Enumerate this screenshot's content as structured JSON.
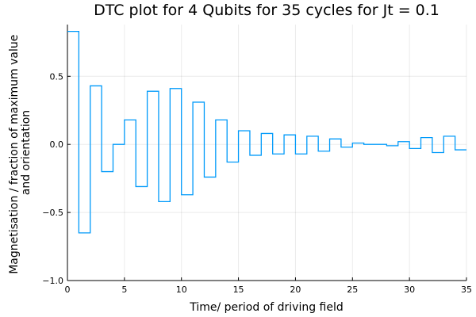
{
  "chart_data": {
    "type": "line",
    "step": true,
    "title": "DTC plot for 4 Qubits for 35 cycles for Jt = 0.1",
    "xlabel": "Time/ period of driving field",
    "ylabel": [
      "Magnetisation / fraction of maximum value",
      "and orientation"
    ],
    "xlim": [
      0,
      35
    ],
    "ylim": [
      -1.0,
      0.88
    ],
    "xticks": [
      0,
      5,
      10,
      15,
      20,
      25,
      30,
      35
    ],
    "xtick_labels": [
      "0",
      "5",
      "10",
      "15",
      "20",
      "25",
      "30",
      "35"
    ],
    "yticks": [
      -1.0,
      -0.5,
      0.0,
      0.5
    ],
    "ytick_labels": [
      "−1.0",
      "−0.5",
      "0.0",
      "0.5"
    ],
    "grid": true,
    "legend": false,
    "series": [
      {
        "color": "#009AFA",
        "x": [
          0,
          1,
          2,
          3,
          4,
          5,
          6,
          7,
          8,
          9,
          10,
          11,
          12,
          13,
          14,
          15,
          16,
          17,
          18,
          19,
          20,
          21,
          22,
          23,
          24,
          25,
          26,
          27,
          28,
          29,
          30,
          31,
          32,
          33,
          34,
          35
        ],
        "values": [
          0.83,
          -0.65,
          0.43,
          -0.2,
          0.0,
          0.18,
          -0.31,
          0.39,
          -0.42,
          0.41,
          -0.37,
          0.31,
          -0.24,
          0.18,
          -0.13,
          0.1,
          -0.08,
          0.08,
          -0.07,
          0.07,
          -0.07,
          0.06,
          -0.05,
          0.04,
          -0.02,
          0.01,
          0.0,
          0.0,
          -0.01,
          0.02,
          -0.03,
          0.05,
          -0.06,
          0.06,
          -0.04,
          -0.04
        ]
      }
    ]
  }
}
